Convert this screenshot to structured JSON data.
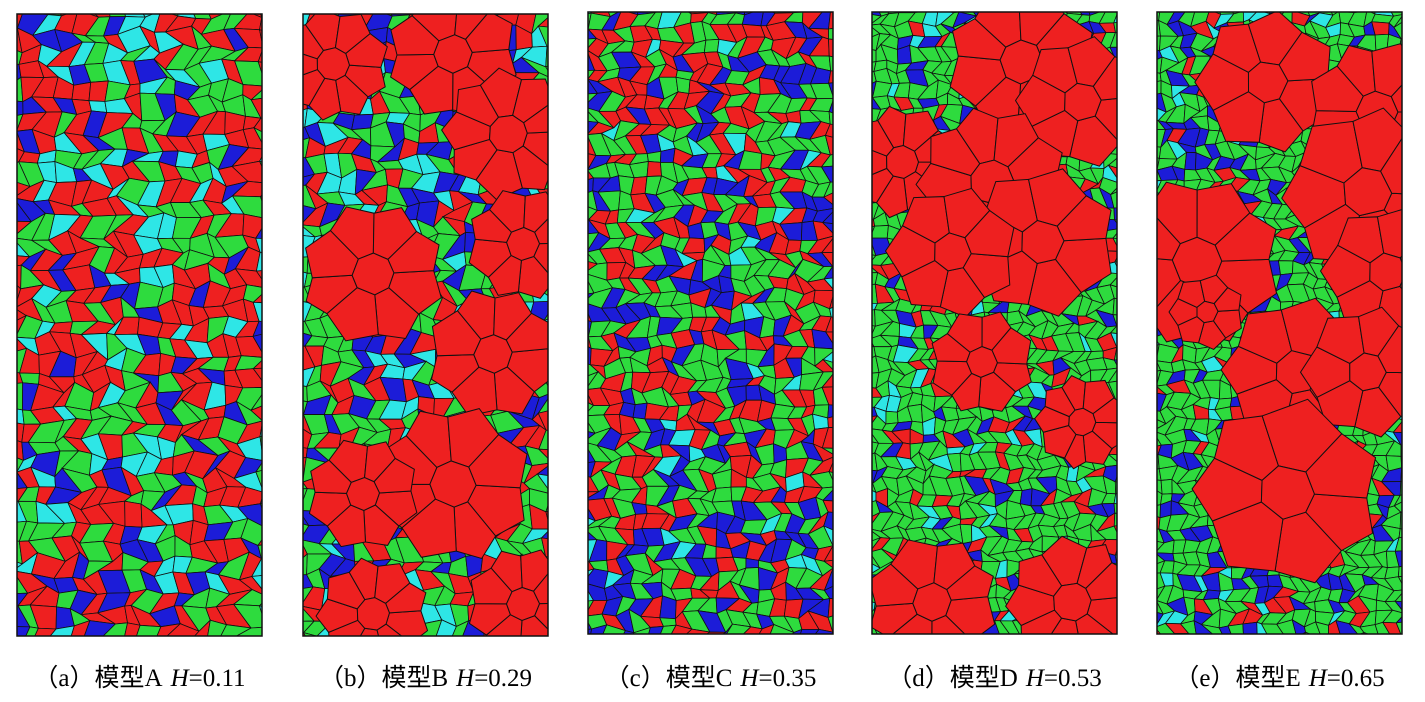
{
  "panels": [
    {
      "label": "（a）模型A",
      "symbol": "H",
      "value": "=0.11"
    },
    {
      "label": "（b）模型B",
      "symbol": "H",
      "value": "=0.29"
    },
    {
      "label": "（c）模型C",
      "symbol": "H",
      "value": "=0.35"
    },
    {
      "label": "（d）模型D",
      "symbol": "H",
      "value": "=0.53"
    },
    {
      "label": "（e）模型E",
      "symbol": "H",
      "value": "=0.65"
    }
  ]
}
